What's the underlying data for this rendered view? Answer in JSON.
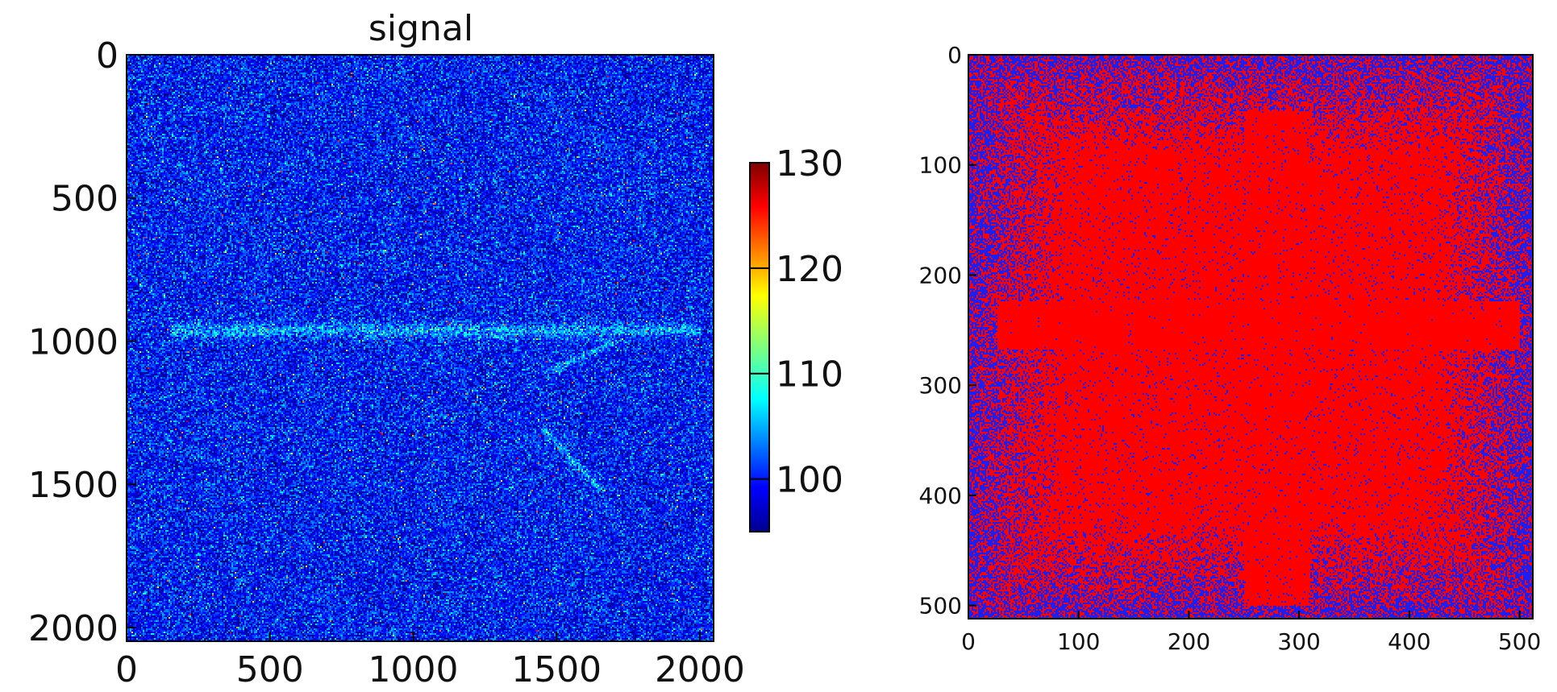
{
  "chart_data": [
    {
      "type": "heatmap",
      "title": "signal",
      "xlabel": "",
      "ylabel": "",
      "xlim": [
        0,
        2048
      ],
      "ylim": [
        2048,
        0
      ],
      "x_ticks": [
        0,
        500,
        1000,
        1500,
        2000
      ],
      "y_ticks": [
        0,
        500,
        1000,
        1500,
        2000
      ],
      "colormap": "jet",
      "colorbar": {
        "range": [
          95,
          130
        ],
        "ticks": [
          100,
          110,
          120,
          130
        ]
      },
      "background_level": 100,
      "features": [
        {
          "kind": "horizontal band",
          "y": 960,
          "x_range": [
            150,
            2000
          ]
        },
        {
          "kind": "diagonal streak",
          "from": [
            1450,
            1300
          ],
          "to": [
            1650,
            1520
          ]
        },
        {
          "kind": "curved streak",
          "from": [
            1480,
            1100
          ],
          "to": [
            1700,
            1000
          ]
        }
      ]
    },
    {
      "type": "heatmap",
      "title": "",
      "xlabel": "",
      "ylabel": "",
      "xlim": [
        0,
        512
      ],
      "ylim": [
        512,
        0
      ],
      "x_ticks": [
        0,
        100,
        200,
        300,
        400,
        500
      ],
      "y_ticks": [
        0,
        100,
        200,
        300,
        400,
        500
      ],
      "colors": {
        "low": "#1e1ef0",
        "high": "#ff0000"
      },
      "features": [
        {
          "kind": "horizontal band",
          "y": 245,
          "x_range": [
            25,
            500
          ]
        },
        {
          "kind": "vertical band",
          "x": 280,
          "y_range": [
            50,
            500
          ]
        }
      ]
    }
  ]
}
